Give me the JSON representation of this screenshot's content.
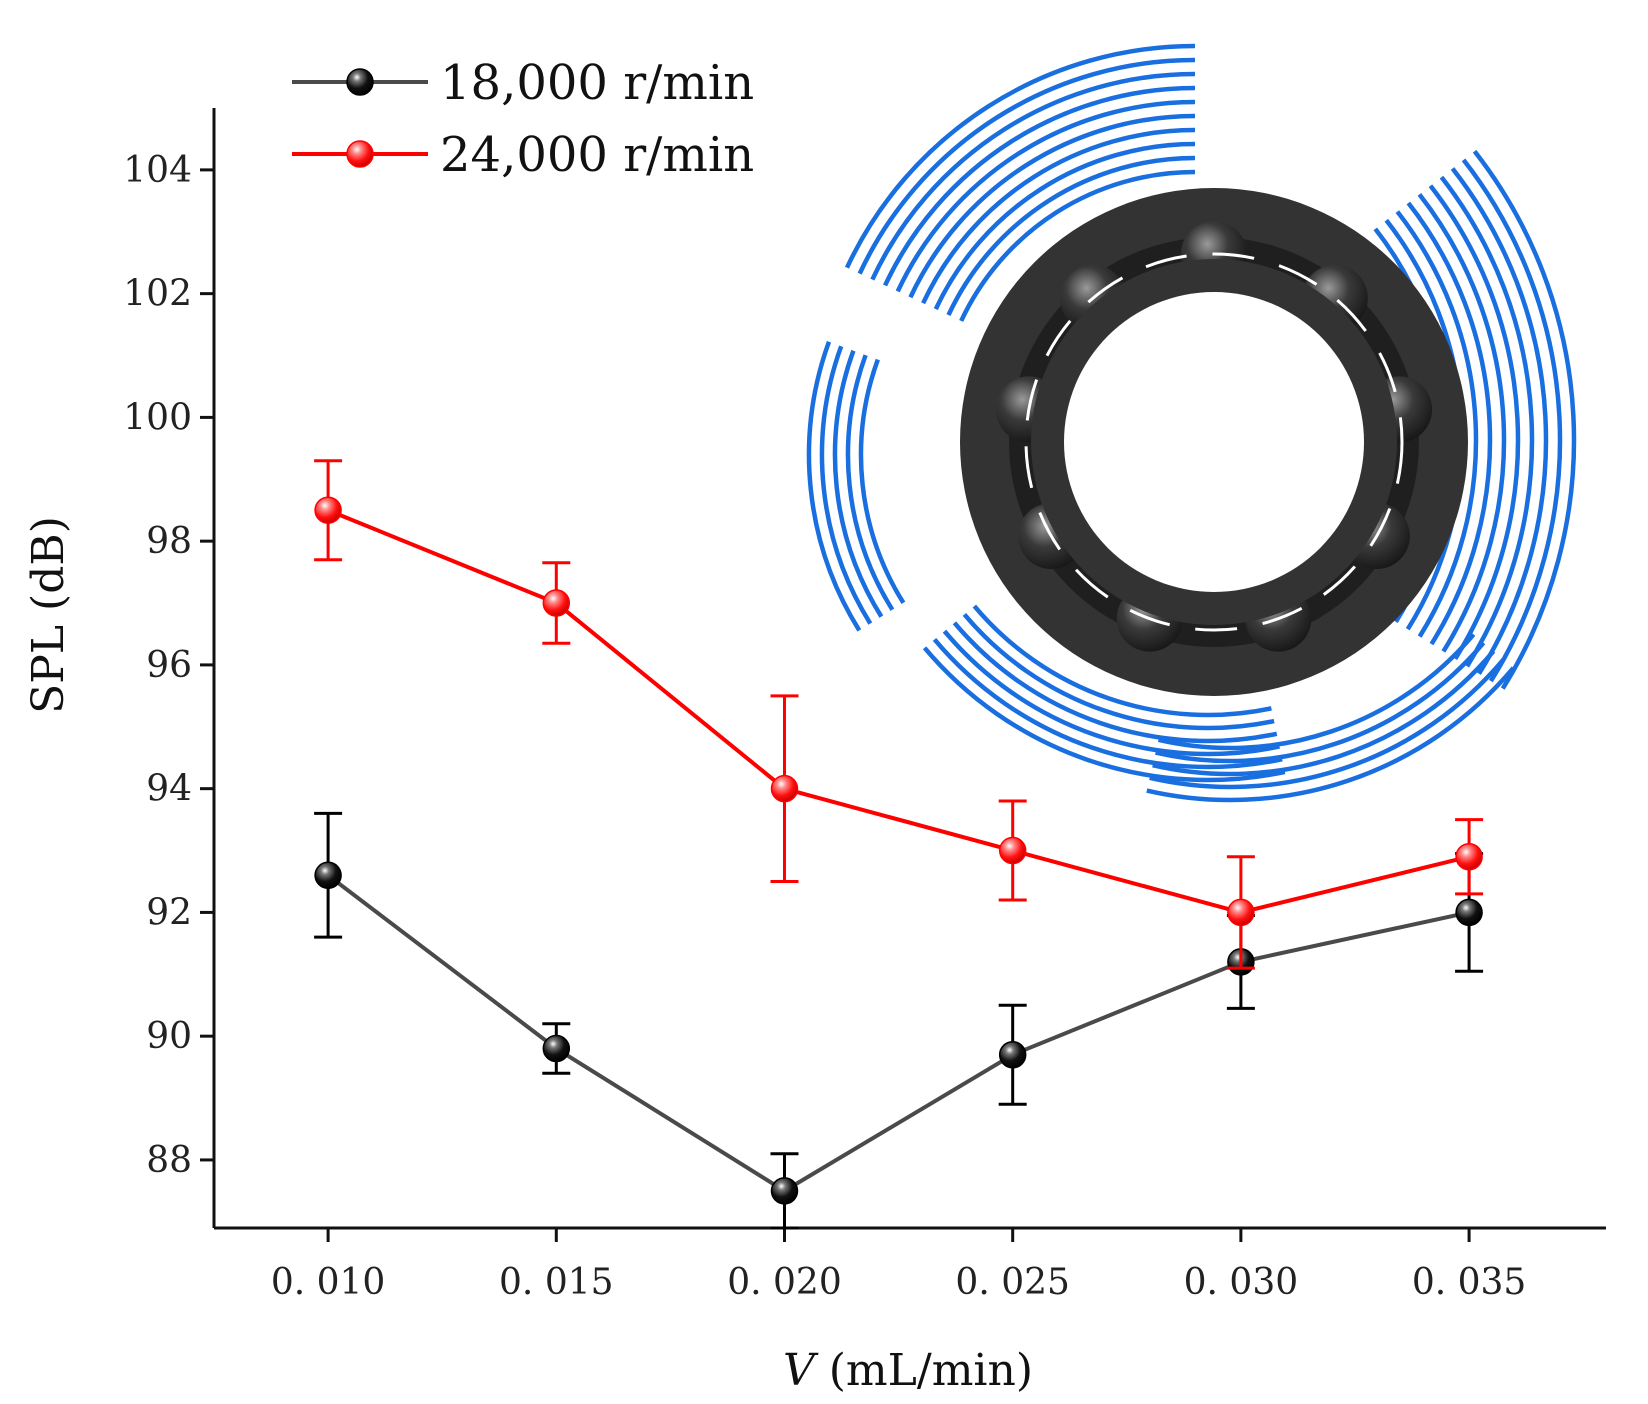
{
  "chart_data": {
    "type": "line",
    "title": "",
    "xlabel": {
      "var": "V",
      "unit": " (mL/min)"
    },
    "ylabel": "SPL (dB)",
    "x": [
      0.01,
      0.015,
      0.02,
      0.025,
      0.03,
      0.035
    ],
    "x_tick_labels": [
      "0. 010",
      "0. 015",
      "0. 020",
      "0. 025",
      "0. 030",
      "0. 035"
    ],
    "xlim": [
      0.0075,
      0.038
    ],
    "y_ticks": [
      88,
      90,
      92,
      94,
      96,
      98,
      100,
      102,
      104
    ],
    "y_tick_labels": [
      "88",
      "90",
      "92",
      "94",
      "96",
      "98",
      "100",
      "102",
      "104"
    ],
    "ylim": [
      86.9,
      105
    ],
    "legend_position": "top-left",
    "grid": false,
    "series": [
      {
        "name": "18,000 r/min",
        "color": "#4a4a4a",
        "marker_color": "#000000",
        "values": [
          92.6,
          89.8,
          87.5,
          89.7,
          91.2,
          92.0
        ],
        "error": [
          1.0,
          0.4,
          0.6,
          0.8,
          0.75,
          0.95
        ]
      },
      {
        "name": "24,000 r/min",
        "color": "#ff0000",
        "marker_color": "#ff0000",
        "values": [
          98.5,
          97.0,
          94.0,
          93.0,
          92.0,
          92.9
        ],
        "error": [
          0.8,
          0.65,
          1.5,
          0.8,
          0.9,
          0.6
        ]
      }
    ],
    "inset": {
      "icon": "bearing-with-sound-waves-icon",
      "ring_color": "#333333",
      "wave_color": "#1a6fe0"
    }
  }
}
